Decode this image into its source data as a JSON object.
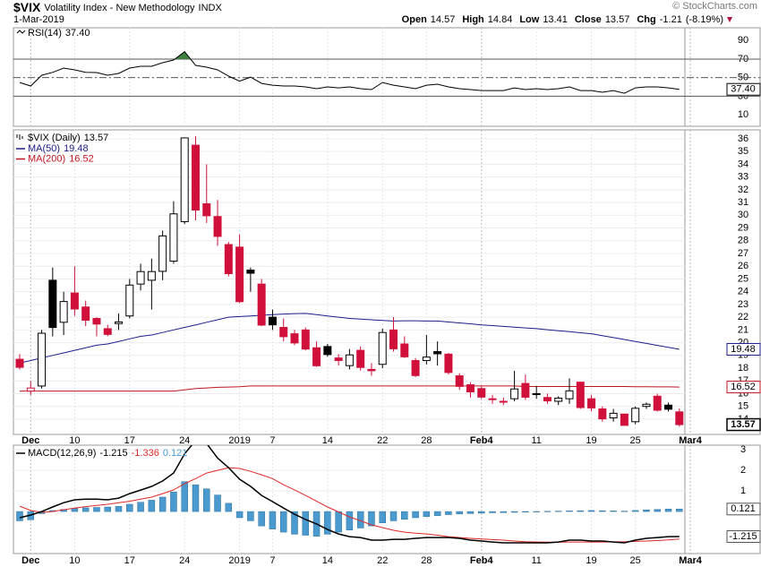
{
  "header": {
    "symbol": "$VIX",
    "name": "Volatility Index - New Methodology",
    "exchange": "INDX",
    "date": "1-Mar-2019",
    "source": "© StockCharts.com",
    "fields": [
      "Open",
      "High",
      "Low",
      "Close",
      "Chg"
    ],
    "change": -1.21,
    "change_pct": {
      "value": -8.19,
      "label": "(-8.19%)"
    }
  },
  "chart_data": [
    {
      "type": "rsi",
      "legend": "RSI(14)",
      "color": "#000000",
      "fill_color": "#3f7f3f",
      "values": [
        44.8,
        41.0,
        52.6,
        55.7,
        60.3,
        58.4,
        55.7,
        55.5,
        52.6,
        54.5,
        60.3,
        62.2,
        62.2,
        66.1,
        69.0,
        78.0,
        63.2,
        61.3,
        58.4,
        51.6,
        46.2,
        50.6,
        43.8,
        41.9,
        41.0,
        41.0,
        40.0,
        38.1,
        40.0,
        39.0,
        40.0,
        38.1,
        37.1,
        44.8,
        41.9,
        40.0,
        38.1,
        41.9,
        42.9,
        40.0,
        38.1,
        37.1,
        36.1,
        36.1,
        36.1,
        39.0,
        37.1,
        38.1,
        37.1,
        38.1,
        40.0,
        36.1,
        36.1,
        34.2,
        36.1,
        33.2,
        39.0,
        40.0,
        40.0,
        39.0,
        37.4
      ],
      "current": {
        "value": 37.4,
        "label": "37.40"
      },
      "ylim": [
        -2.5,
        103.8
      ],
      "yticks": [
        10,
        30,
        50,
        70,
        90
      ],
      "bands": [
        30,
        70
      ],
      "midline": 50
    },
    {
      "type": "candlestick",
      "legend": "$VIX (Daily)",
      "up_color": "#000000",
      "down_color": "#d0103a",
      "grid": true,
      "categories": [
        null,
        "Dec",
        null,
        null,
        null,
        "10",
        null,
        null,
        null,
        null,
        "17",
        null,
        null,
        null,
        null,
        "24",
        null,
        null,
        null,
        null,
        "2019",
        null,
        null,
        "7",
        null,
        null,
        null,
        null,
        "14",
        null,
        null,
        null,
        null,
        "22",
        null,
        null,
        null,
        "28",
        null,
        null,
        null,
        null,
        "Feb4",
        null,
        null,
        null,
        null,
        "11",
        null,
        null,
        null,
        null,
        "19",
        null,
        null,
        null,
        "25",
        null,
        null,
        null,
        null,
        "Mar4"
      ],
      "open": [
        18.7,
        16.2,
        16.6,
        24.9,
        21.6,
        23.9,
        22.8,
        21.9,
        21.1,
        21.5,
        22.1,
        24.6,
        24.9,
        25.6,
        26.4,
        29.5,
        35.5,
        30.9,
        29.9,
        27.7,
        27.5,
        25.7,
        24.6,
        22.0,
        21.2,
        20.7,
        21.0,
        19.6,
        19.7,
        18.8,
        18.2,
        19.4,
        17.9,
        18.3,
        21.0,
        19.9,
        18.6,
        18.6,
        19.3,
        19.1,
        17.4,
        16.7,
        16.4,
        15.6,
        15.4,
        15.6,
        16.8,
        16.0,
        15.7,
        15.4,
        15.6,
        16.9,
        15.6,
        14.8,
        14.1,
        14.4,
        13.8,
        15.0,
        15.8,
        15.1,
        14.57,
        null
      ],
      "high": [
        19.1,
        17.0,
        21.0,
        25.9,
        24.0,
        26.0,
        23.3,
        22.0,
        21.4,
        22.3,
        25.0,
        26.2,
        26.6,
        28.8,
        31.1,
        36.1,
        36.2,
        34.0,
        31.2,
        27.9,
        28.5,
        25.9,
        25.0,
        22.6,
        21.9,
        21.0,
        21.2,
        20.1,
        19.9,
        19.1,
        19.5,
        19.7,
        18.4,
        21.1,
        22.0,
        20.5,
        18.8,
        20.6,
        20.1,
        19.2,
        17.6,
        16.9,
        16.6,
        15.9,
        15.7,
        17.8,
        17.5,
        16.6,
        16.0,
        15.8,
        17.2,
        16.9,
        15.9,
        15.0,
        14.8,
        14.4,
        15.0,
        15.3,
        16.0,
        15.3,
        14.84,
        null
      ],
      "low": [
        17.9,
        15.9,
        16.4,
        20.5,
        20.6,
        22.1,
        21.3,
        20.5,
        20.5,
        21.0,
        21.9,
        24.1,
        22.6,
        24.9,
        26.2,
        29.3,
        29.6,
        29.4,
        27.6,
        25.2,
        23.1,
        24.0,
        21.3,
        21.0,
        20.1,
        19.8,
        19.4,
        18.1,
        18.9,
        18.2,
        17.9,
        17.8,
        17.4,
        18.0,
        19.3,
        18.8,
        17.3,
        18.3,
        18.2,
        17.5,
        16.3,
        15.7,
        15.6,
        15.2,
        15.1,
        15.4,
        15.5,
        15.6,
        15.2,
        15.1,
        15.2,
        14.8,
        14.6,
        13.8,
        13.8,
        13.5,
        13.6,
        14.8,
        14.6,
        14.6,
        13.41,
        null
      ],
      "close": [
        18.07,
        16.44,
        20.74,
        21.19,
        23.23,
        22.64,
        21.76,
        21.46,
        20.65,
        21.63,
        24.52,
        25.58,
        25.58,
        28.38,
        30.11,
        36.07,
        30.41,
        29.96,
        28.34,
        25.42,
        23.22,
        25.45,
        21.38,
        21.4,
        20.47,
        19.98,
        19.5,
        18.19,
        19.07,
        18.6,
        19.04,
        18.06,
        17.8,
        20.8,
        19.52,
        18.89,
        17.42,
        18.87,
        19.13,
        17.66,
        16.57,
        16.14,
        15.73,
        15.57,
        15.38,
        16.37,
        15.72,
        15.97,
        15.43,
        15.65,
        16.22,
        14.91,
        14.88,
        14.02,
        14.46,
        13.51,
        14.85,
        15.17,
        14.7,
        14.78,
        13.57,
        null
      ],
      "series": [
        {
          "name": "MA(50)",
          "color": "#1c1c8a",
          "values": [
            18.4,
            18.6,
            18.8,
            19.0,
            19.2,
            19.4,
            19.6,
            19.8,
            19.9,
            20.1,
            20.3,
            20.5,
            20.6,
            20.8,
            21.0,
            21.2,
            21.4,
            21.6,
            21.8,
            22.0,
            22.05,
            22.1,
            22.15,
            22.2,
            22.25,
            22.28,
            22.3,
            22.2,
            22.1,
            22.0,
            21.9,
            21.85,
            21.8,
            21.75,
            21.7,
            21.72,
            21.72,
            21.7,
            21.7,
            21.62,
            21.55,
            21.48,
            21.4,
            21.34,
            21.28,
            21.22,
            21.16,
            21.1,
            21.02,
            20.94,
            20.86,
            20.78,
            20.7,
            20.55,
            20.4,
            20.25,
            20.1,
            19.94,
            19.79,
            19.63,
            19.48,
            null
          ]
        },
        {
          "name": "MA(200)",
          "color": "#c0141e",
          "values": [
            16.2,
            16.2,
            16.2,
            16.2,
            16.2,
            16.2,
            16.2,
            16.2,
            16.2,
            16.2,
            16.2,
            16.2,
            16.2,
            16.2,
            16.2,
            16.3,
            16.4,
            16.45,
            16.5,
            16.52,
            16.55,
            16.6,
            16.6,
            16.6,
            16.6,
            16.6,
            16.6,
            16.6,
            16.6,
            16.6,
            16.6,
            16.6,
            16.6,
            16.6,
            16.6,
            16.6,
            16.6,
            16.6,
            16.6,
            16.6,
            16.6,
            16.6,
            16.6,
            16.6,
            16.6,
            16.6,
            16.56,
            16.56,
            16.56,
            16.56,
            16.56,
            16.56,
            16.56,
            16.56,
            16.56,
            16.56,
            16.54,
            16.54,
            16.53,
            16.53,
            16.52,
            null
          ]
        }
      ],
      "ylim": [
        12.8,
        36.7
      ],
      "yticks": [
        14,
        15,
        16,
        17,
        18,
        19,
        20,
        21,
        22,
        23,
        24,
        25,
        26,
        27,
        28,
        29,
        30,
        31,
        32,
        33,
        34,
        35,
        36
      ]
    },
    {
      "type": "macd",
      "legend": "MACD(12,26,9)",
      "series": [
        {
          "color": "#000000",
          "values": [
            -0.3,
            -0.17,
            0.0,
            0.22,
            0.43,
            0.57,
            0.6,
            0.6,
            0.57,
            0.65,
            0.87,
            1.04,
            1.22,
            1.48,
            1.87,
            2.8,
            3.45,
            3.3,
            2.6,
            2.13,
            1.57,
            1.22,
            0.78,
            0.48,
            0.17,
            -0.13,
            -0.39,
            -0.6,
            -0.87,
            -1.09,
            -1.22,
            -1.26,
            -1.39,
            -1.39,
            -1.35,
            -1.35,
            -1.3,
            -1.26,
            -1.26,
            -1.26,
            -1.3,
            -1.39,
            -1.43,
            -1.48,
            -1.52,
            -1.52,
            -1.52,
            -1.52,
            -1.52,
            -1.48,
            -1.39,
            -1.39,
            -1.43,
            -1.43,
            -1.48,
            -1.52,
            -1.39,
            -1.3,
            -1.26,
            -1.22,
            -1.215
          ]
        },
        {
          "color": "#e02828",
          "values": [
            0.26,
            0.05,
            -0.04,
            0.0,
            0.09,
            0.17,
            0.24,
            0.3,
            0.35,
            0.43,
            0.5,
            0.6,
            0.7,
            0.87,
            1.05,
            1.35,
            1.6,
            1.87,
            2.0,
            2.13,
            2.09,
            1.95,
            1.78,
            1.6,
            1.3,
            1.05,
            0.78,
            0.5,
            0.22,
            -0.02,
            -0.26,
            -0.45,
            -0.65,
            -0.78,
            -0.91,
            -1.0,
            -1.05,
            -1.09,
            -1.15,
            -1.22,
            -1.26,
            -1.3,
            -1.33,
            -1.36,
            -1.39,
            -1.43,
            -1.46,
            -1.48,
            -1.49,
            -1.49,
            -1.48,
            -1.48,
            -1.48,
            -1.48,
            -1.47,
            -1.47,
            -1.45,
            -1.43,
            -1.41,
            -1.38,
            -1.336
          ]
        },
        {
          "color": "#4a9ad0",
          "values": [
            -0.45,
            -0.4,
            -0.1,
            0.05,
            0.1,
            0.15,
            0.18,
            0.2,
            0.22,
            0.25,
            0.35,
            0.45,
            0.55,
            0.7,
            0.95,
            1.45,
            1.3,
            1.1,
            0.8,
            0.4,
            -0.3,
            -0.45,
            -0.7,
            -0.85,
            -1.0,
            -1.1,
            -1.15,
            -1.2,
            -1.1,
            -1.0,
            -0.9,
            -0.8,
            -0.7,
            -0.55,
            -0.45,
            -0.38,
            -0.3,
            -0.25,
            -0.2,
            -0.15,
            -0.12,
            -0.1,
            -0.08,
            -0.06,
            -0.05,
            -0.04,
            -0.03,
            -0.02,
            0.01,
            0.02,
            0.03,
            0.04,
            0.05,
            0.04,
            0.03,
            0.02,
            0.05,
            0.08,
            0.1,
            0.12,
            0.121
          ]
        }
      ],
      "ylim": [
        -2.04,
        3.22
      ],
      "yticks": [
        1,
        2,
        3
      ]
    }
  ]
}
